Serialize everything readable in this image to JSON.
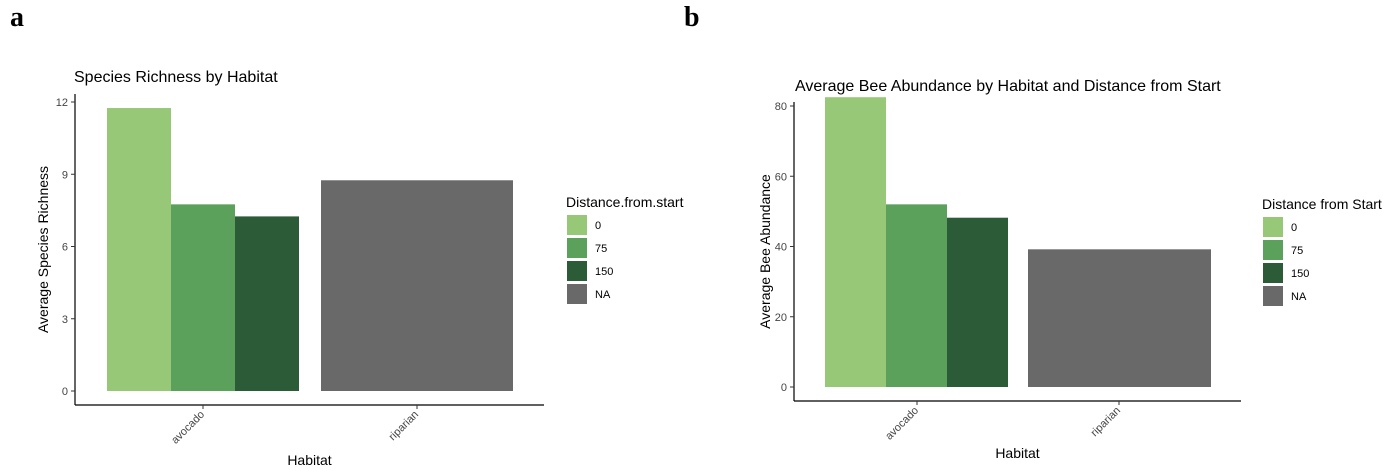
{
  "panels": {
    "a_label": "a",
    "b_label": "b"
  },
  "chart_data": [
    {
      "type": "bar",
      "title": "Species Richness by Habitat",
      "xlabel": "Habitat",
      "ylabel": "Average Species Richness",
      "categories": [
        "avocado",
        "riparian"
      ],
      "ylim": [
        0,
        12
      ],
      "yticks": [
        0,
        3,
        6,
        9,
        12
      ],
      "grid": false,
      "legend": {
        "title": "Distance.from.start",
        "position": "right",
        "entries": [
          {
            "label": "0",
            "color": "#97c877"
          },
          {
            "label": "75",
            "color": "#5ba05b"
          },
          {
            "label": "150",
            "color": "#2c5c37"
          },
          {
            "label": "NA",
            "color": "#696969"
          }
        ]
      },
      "bars": [
        {
          "category": "avocado",
          "group": "0",
          "value": 11.75,
          "color": "#97c877"
        },
        {
          "category": "avocado",
          "group": "75",
          "value": 7.75,
          "color": "#5ba05b"
        },
        {
          "category": "avocado",
          "group": "150",
          "value": 7.25,
          "color": "#2c5c37"
        },
        {
          "category": "riparian",
          "group": "NA",
          "value": 8.75,
          "color": "#696969"
        }
      ]
    },
    {
      "type": "bar",
      "title": "Average Bee Abundance by Habitat and Distance from Start",
      "xlabel": "Habitat",
      "ylabel": "Average Bee Abundance",
      "categories": [
        "avocado",
        "riparian"
      ],
      "ylim": [
        0,
        85
      ],
      "yticks": [
        0,
        20,
        40,
        60,
        80
      ],
      "grid": false,
      "legend": {
        "title": "Distance from Start",
        "position": "right",
        "entries": [
          {
            "label": "0",
            "color": "#97c877"
          },
          {
            "label": "75",
            "color": "#5ba05b"
          },
          {
            "label": "150",
            "color": "#2c5c37"
          },
          {
            "label": "NA",
            "color": "#696969"
          }
        ]
      },
      "bars": [
        {
          "category": "avocado",
          "group": "0",
          "value": 82.5,
          "color": "#97c877"
        },
        {
          "category": "avocado",
          "group": "75",
          "value": 52,
          "color": "#5ba05b"
        },
        {
          "category": "avocado",
          "group": "150",
          "value": 48.2,
          "color": "#2c5c37"
        },
        {
          "category": "riparian",
          "group": "NA",
          "value": 39.2,
          "color": "#696969"
        }
      ]
    }
  ]
}
